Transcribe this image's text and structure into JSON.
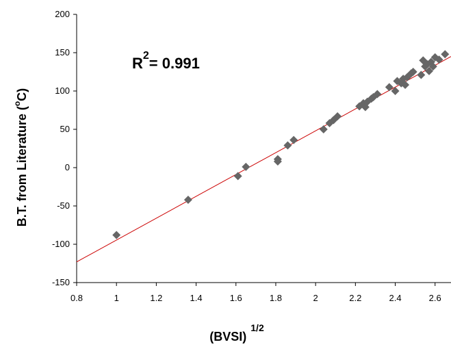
{
  "chart_data": {
    "type": "scatter",
    "annotation": {
      "base": "R",
      "sup": "2",
      "rest": "= 0.991"
    },
    "xlabel": {
      "base": "(BVSI)",
      "sup": "1/2"
    },
    "ylabel": {
      "base": "B.T. from Literature (",
      "sup": "o",
      "unit": "C)"
    },
    "xlim": [
      0.8,
      2.68
    ],
    "ylim": [
      -150,
      200
    ],
    "xticks": [
      "0.8",
      "1",
      "1.2",
      "1.4",
      "1.6",
      "1.8",
      "2",
      "2.2",
      "2.4",
      "2.6"
    ],
    "yticks": [
      "-150",
      "-100",
      "-50",
      "0",
      "50",
      "100",
      "150",
      "200"
    ],
    "grid": false,
    "colors": {
      "marker": "#666666",
      "trendline": "#cc0000",
      "axis": "#000000"
    },
    "trendline": {
      "x": [
        0.8,
        2.68
      ],
      "y": [
        -123,
        145
      ]
    },
    "points": [
      {
        "x": 1.0,
        "y": -88
      },
      {
        "x": 1.36,
        "y": -42
      },
      {
        "x": 1.61,
        "y": -11
      },
      {
        "x": 1.65,
        "y": 1
      },
      {
        "x": 1.81,
        "y": 11
      },
      {
        "x": 1.81,
        "y": 8
      },
      {
        "x": 1.86,
        "y": 29
      },
      {
        "x": 1.89,
        "y": 36
      },
      {
        "x": 2.04,
        "y": 50
      },
      {
        "x": 2.07,
        "y": 58
      },
      {
        "x": 2.09,
        "y": 62
      },
      {
        "x": 2.11,
        "y": 67
      },
      {
        "x": 2.22,
        "y": 80
      },
      {
        "x": 2.24,
        "y": 84
      },
      {
        "x": 2.25,
        "y": 79
      },
      {
        "x": 2.26,
        "y": 86
      },
      {
        "x": 2.28,
        "y": 90
      },
      {
        "x": 2.29,
        "y": 92
      },
      {
        "x": 2.31,
        "y": 96
      },
      {
        "x": 2.37,
        "y": 105
      },
      {
        "x": 2.4,
        "y": 100
      },
      {
        "x": 2.41,
        "y": 113
      },
      {
        "x": 2.43,
        "y": 110
      },
      {
        "x": 2.44,
        "y": 116
      },
      {
        "x": 2.45,
        "y": 108
      },
      {
        "x": 2.46,
        "y": 118
      },
      {
        "x": 2.48,
        "y": 123
      },
      {
        "x": 2.49,
        "y": 125
      },
      {
        "x": 2.53,
        "y": 121
      },
      {
        "x": 2.54,
        "y": 140
      },
      {
        "x": 2.55,
        "y": 132
      },
      {
        "x": 2.56,
        "y": 135
      },
      {
        "x": 2.57,
        "y": 126
      },
      {
        "x": 2.58,
        "y": 138
      },
      {
        "x": 2.59,
        "y": 132
      },
      {
        "x": 2.6,
        "y": 144
      },
      {
        "x": 2.62,
        "y": 141
      },
      {
        "x": 2.65,
        "y": 148
      }
    ]
  }
}
